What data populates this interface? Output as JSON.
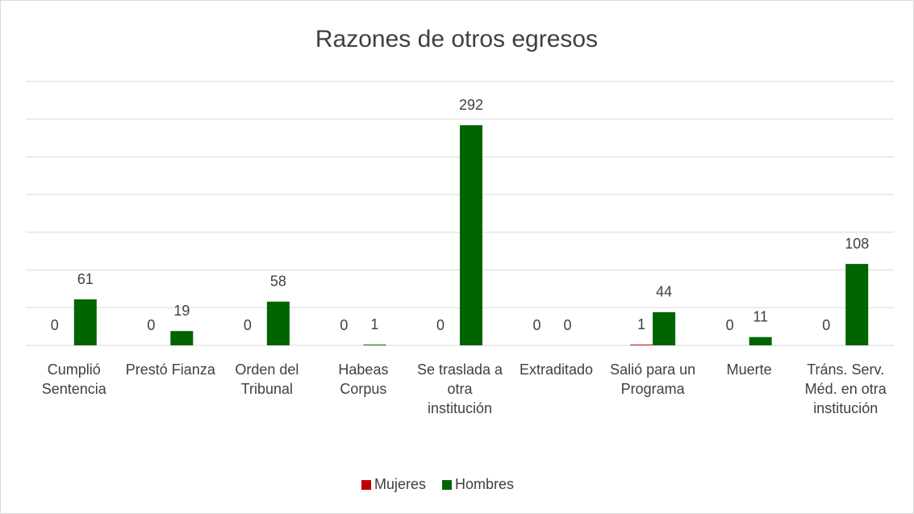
{
  "chart_data": {
    "type": "bar",
    "title": "Razones de otros egresos",
    "categories": [
      "Cumplió Sentencia",
      "Prestó Fianza",
      "Orden del Tribunal",
      "Habeas Corpus",
      "Se traslada a otra institución",
      "Extraditado",
      "Salió para un Programa",
      "Muerte",
      "Tráns. Serv. Méd. en otra institución"
    ],
    "series": [
      {
        "name": "Mujeres",
        "color": "#c00000",
        "values": [
          0,
          0,
          0,
          0,
          0,
          0,
          1,
          0,
          0
        ]
      },
      {
        "name": "Hombres",
        "color": "#006400",
        "values": [
          61,
          19,
          58,
          1,
          292,
          0,
          44,
          11,
          108
        ]
      }
    ],
    "ylim": [
      0,
      350
    ],
    "yticks": [
      0,
      50,
      100,
      150,
      200,
      250,
      300,
      350
    ],
    "grid": true,
    "legend": "bottom"
  }
}
